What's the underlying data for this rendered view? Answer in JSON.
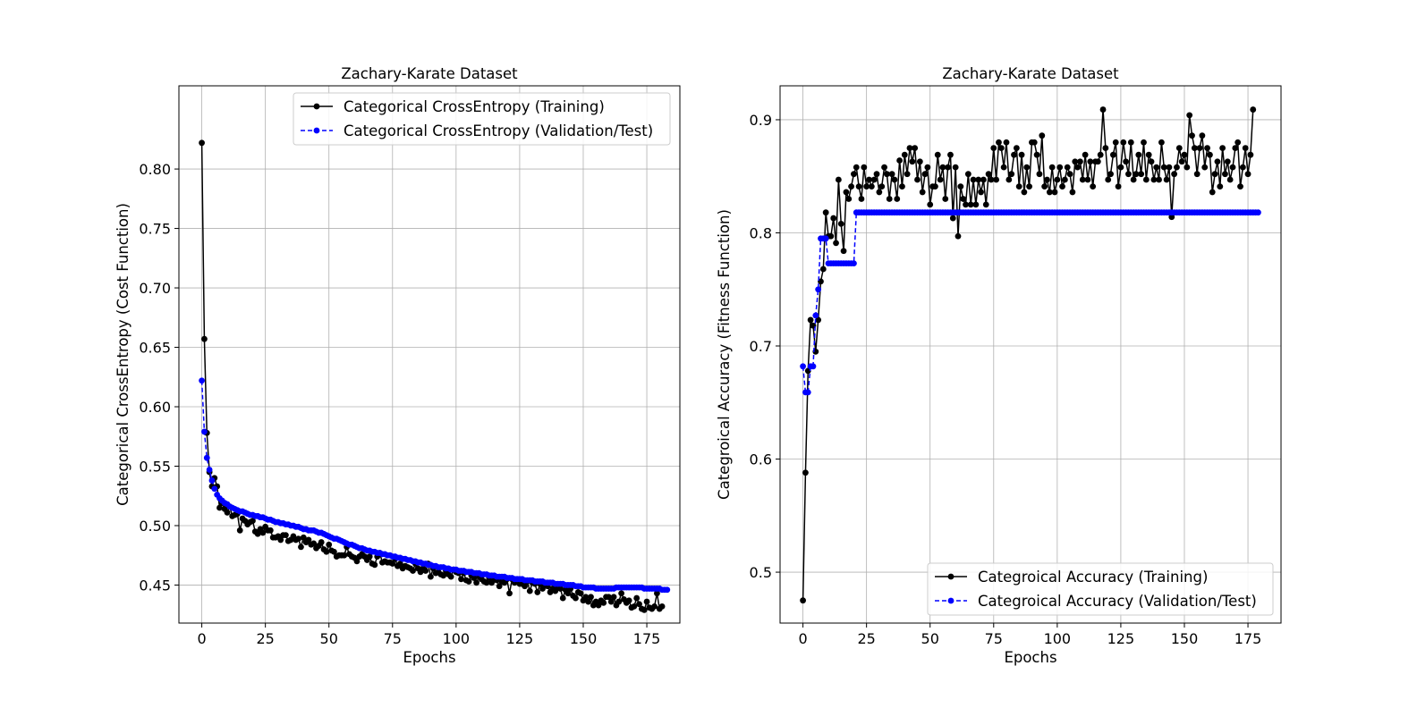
{
  "chart_data": [
    {
      "type": "line",
      "title": "Zachary-Karate Dataset",
      "xlabel": "Epochs",
      "ylabel": "Categorical CrossEntropy (Cost Function)",
      "xlim": [
        -9,
        188
      ],
      "ylim": [
        0.418,
        0.87
      ],
      "xticks": [
        "0",
        "25",
        "50",
        "75",
        "100",
        "125",
        "150",
        "175"
      ],
      "yticks": [
        "0.45",
        "0.50",
        "0.55",
        "0.60",
        "0.65",
        "0.70",
        "0.75",
        "0.80"
      ],
      "grid": true,
      "legend_position": "top-right",
      "series": [
        {
          "name": "Categorical CrossEntropy (Training)",
          "color": "#000000",
          "linestyle": "solid",
          "x_start": 0,
          "values": [
            0.822,
            0.657,
            0.578,
            0.545,
            0.533,
            0.54,
            0.533,
            0.515,
            0.519,
            0.514,
            0.511,
            0.516,
            0.508,
            0.509,
            0.51,
            0.496,
            0.506,
            0.504,
            0.501,
            0.503,
            0.504,
            0.495,
            0.493,
            0.497,
            0.494,
            0.499,
            0.496,
            0.496,
            0.49,
            0.49,
            0.491,
            0.488,
            0.492,
            0.492,
            0.487,
            0.488,
            0.491,
            0.488,
            0.489,
            0.482,
            0.49,
            0.486,
            0.488,
            0.484,
            0.485,
            0.481,
            0.483,
            0.486,
            0.48,
            0.478,
            0.484,
            0.479,
            0.478,
            0.474,
            0.475,
            0.475,
            0.475,
            0.482,
            0.476,
            0.474,
            0.473,
            0.47,
            0.474,
            0.476,
            0.474,
            0.471,
            0.474,
            0.468,
            0.467,
            0.474,
            0.477,
            0.469,
            0.47,
            0.469,
            0.469,
            0.468,
            0.472,
            0.466,
            0.468,
            0.464,
            0.466,
            0.465,
            0.464,
            0.462,
            0.468,
            0.464,
            0.461,
            0.464,
            0.462,
            0.468,
            0.457,
            0.464,
            0.46,
            0.461,
            0.459,
            0.458,
            0.462,
            0.459,
            0.457,
            0.463,
            0.461,
            0.46,
            0.455,
            0.46,
            0.454,
            0.453,
            0.458,
            0.456,
            0.452,
            0.457,
            0.455,
            0.453,
            0.452,
            0.456,
            0.452,
            0.455,
            0.454,
            0.449,
            0.453,
            0.452,
            0.455,
            0.443,
            0.455,
            0.452,
            0.455,
            0.451,
            0.451,
            0.449,
            0.453,
            0.445,
            0.452,
            0.451,
            0.444,
            0.451,
            0.447,
            0.45,
            0.449,
            0.444,
            0.447,
            0.445,
            0.448,
            0.447,
            0.439,
            0.446,
            0.443,
            0.447,
            0.441,
            0.439,
            0.444,
            0.443,
            0.437,
            0.44,
            0.436,
            0.44,
            0.433,
            0.436,
            0.433,
            0.437,
            0.435,
            0.44,
            0.44,
            0.436,
            0.44,
            0.433,
            0.436,
            0.443,
            0.438,
            0.435,
            0.437,
            0.431,
            0.432,
            0.439,
            0.434,
            0.43,
            0.429,
            0.436,
            0.431,
            0.43,
            0.432,
            0.443,
            0.43,
            0.432
          ]
        },
        {
          "name": "Categorical CrossEntropy (Validation/Test)",
          "color": "#0000ff",
          "linestyle": "dashed",
          "x_start": 0,
          "values": [
            0.622,
            0.579,
            0.557,
            0.547,
            0.538,
            0.531,
            0.526,
            0.523,
            0.521,
            0.519,
            0.518,
            0.516,
            0.515,
            0.514,
            0.513,
            0.512,
            0.512,
            0.511,
            0.51,
            0.509,
            0.509,
            0.508,
            0.508,
            0.507,
            0.507,
            0.506,
            0.505,
            0.505,
            0.504,
            0.503,
            0.503,
            0.502,
            0.502,
            0.501,
            0.501,
            0.5,
            0.5,
            0.499,
            0.499,
            0.498,
            0.497,
            0.497,
            0.496,
            0.496,
            0.496,
            0.495,
            0.494,
            0.494,
            0.493,
            0.492,
            0.491,
            0.49,
            0.489,
            0.489,
            0.488,
            0.487,
            0.486,
            0.485,
            0.484,
            0.484,
            0.483,
            0.482,
            0.481,
            0.481,
            0.48,
            0.479,
            0.479,
            0.478,
            0.478,
            0.477,
            0.477,
            0.476,
            0.476,
            0.475,
            0.475,
            0.474,
            0.474,
            0.473,
            0.473,
            0.472,
            0.472,
            0.471,
            0.471,
            0.47,
            0.47,
            0.469,
            0.469,
            0.468,
            0.468,
            0.467,
            0.467,
            0.466,
            0.466,
            0.465,
            0.465,
            0.465,
            0.464,
            0.464,
            0.463,
            0.463,
            0.463,
            0.462,
            0.462,
            0.462,
            0.461,
            0.461,
            0.461,
            0.46,
            0.46,
            0.46,
            0.459,
            0.459,
            0.459,
            0.458,
            0.458,
            0.458,
            0.457,
            0.457,
            0.457,
            0.457,
            0.456,
            0.456,
            0.456,
            0.455,
            0.455,
            0.455,
            0.455,
            0.454,
            0.454,
            0.454,
            0.454,
            0.453,
            0.453,
            0.453,
            0.453,
            0.452,
            0.452,
            0.452,
            0.452,
            0.451,
            0.451,
            0.451,
            0.451,
            0.45,
            0.45,
            0.45,
            0.45,
            0.449,
            0.449,
            0.449,
            0.448,
            0.448,
            0.448,
            0.448,
            0.448,
            0.447,
            0.447,
            0.447,
            0.447,
            0.447,
            0.447,
            0.447,
            0.447,
            0.448,
            0.448,
            0.448,
            0.448,
            0.448,
            0.448,
            0.448,
            0.448,
            0.448,
            0.448,
            0.448,
            0.447,
            0.447,
            0.447,
            0.447,
            0.447,
            0.447,
            0.447,
            0.446,
            0.446,
            0.446
          ]
        }
      ]
    },
    {
      "type": "line",
      "title": "Zachary-Karate Dataset",
      "xlabel": "Epochs",
      "ylabel": "Categroical Accuracy (Fitness Function)",
      "xlim": [
        -9,
        188
      ],
      "ylim": [
        0.455,
        0.93
      ],
      "xticks": [
        "0",
        "25",
        "50",
        "75",
        "100",
        "125",
        "150",
        "175"
      ],
      "yticks": [
        "0.5",
        "0.6",
        "0.7",
        "0.8",
        "0.9"
      ],
      "grid": true,
      "legend_position": "lower-right",
      "series": [
        {
          "name": "Categroical Accuracy (Training)",
          "color": "#000000",
          "linestyle": "solid",
          "x_start": 0,
          "values": [
            0.475,
            0.588,
            0.678,
            0.723,
            0.718,
            0.695,
            0.723,
            0.757,
            0.768,
            0.818,
            0.797,
            0.797,
            0.813,
            0.791,
            0.847,
            0.808,
            0.784,
            0.836,
            0.83,
            0.841,
            0.852,
            0.858,
            0.841,
            0.83,
            0.858,
            0.841,
            0.847,
            0.841,
            0.847,
            0.852,
            0.836,
            0.841,
            0.858,
            0.852,
            0.83,
            0.852,
            0.847,
            0.83,
            0.864,
            0.841,
            0.869,
            0.852,
            0.875,
            0.863,
            0.875,
            0.847,
            0.863,
            0.836,
            0.852,
            0.858,
            0.825,
            0.841,
            0.841,
            0.869,
            0.847,
            0.858,
            0.83,
            0.858,
            0.869,
            0.813,
            0.858,
            0.797,
            0.841,
            0.83,
            0.825,
            0.852,
            0.825,
            0.847,
            0.825,
            0.847,
            0.836,
            0.847,
            0.825,
            0.852,
            0.847,
            0.875,
            0.847,
            0.88,
            0.875,
            0.858,
            0.88,
            0.847,
            0.852,
            0.869,
            0.875,
            0.841,
            0.869,
            0.836,
            0.858,
            0.841,
            0.88,
            0.88,
            0.869,
            0.852,
            0.886,
            0.841,
            0.847,
            0.836,
            0.858,
            0.836,
            0.847,
            0.858,
            0.841,
            0.847,
            0.858,
            0.852,
            0.836,
            0.863,
            0.858,
            0.863,
            0.847,
            0.869,
            0.847,
            0.863,
            0.841,
            0.863,
            0.863,
            0.869,
            0.909,
            0.875,
            0.847,
            0.852,
            0.869,
            0.88,
            0.841,
            0.858,
            0.88,
            0.863,
            0.852,
            0.88,
            0.847,
            0.852,
            0.869,
            0.852,
            0.88,
            0.847,
            0.869,
            0.863,
            0.847,
            0.858,
            0.847,
            0.88,
            0.858,
            0.847,
            0.858,
            0.814,
            0.852,
            0.858,
            0.875,
            0.863,
            0.869,
            0.858,
            0.904,
            0.886,
            0.875,
            0.852,
            0.875,
            0.886,
            0.858,
            0.875,
            0.869,
            0.836,
            0.852,
            0.863,
            0.841,
            0.875,
            0.852,
            0.863,
            0.847,
            0.858,
            0.875,
            0.88,
            0.841,
            0.858,
            0.875,
            0.852,
            0.869,
            0.909
          ]
        },
        {
          "name": "Categroical Accuracy (Validation/Test)",
          "color": "#0000ff",
          "linestyle": "dashed",
          "x_start": 0,
          "values": [
            0.682,
            0.659,
            0.659,
            0.682,
            0.682,
            0.727,
            0.75,
            0.795,
            0.795,
            0.795,
            0.773,
            0.773,
            0.773,
            0.773,
            0.773,
            0.773,
            0.773,
            0.773,
            0.773,
            0.773,
            0.773,
            0.818,
            0.818,
            0.818,
            0.818,
            0.818,
            0.818,
            0.818,
            0.818,
            0.818,
            0.818,
            0.818,
            0.818,
            0.818,
            0.818,
            0.818,
            0.818,
            0.818,
            0.818,
            0.818,
            0.818,
            0.818,
            0.818,
            0.818,
            0.818,
            0.818,
            0.818,
            0.818,
            0.818,
            0.818,
            0.818,
            0.818,
            0.818,
            0.818,
            0.818,
            0.818,
            0.818,
            0.818,
            0.818,
            0.818,
            0.818,
            0.818,
            0.818,
            0.818,
            0.818,
            0.818,
            0.818,
            0.818,
            0.818,
            0.818,
            0.818,
            0.818,
            0.818,
            0.818,
            0.818,
            0.818,
            0.818,
            0.818,
            0.818,
            0.818,
            0.818,
            0.818,
            0.818,
            0.818,
            0.818,
            0.818,
            0.818,
            0.818,
            0.818,
            0.818,
            0.818,
            0.818,
            0.818,
            0.818,
            0.818,
            0.818,
            0.818,
            0.818,
            0.818,
            0.818,
            0.818,
            0.818,
            0.818,
            0.818,
            0.818,
            0.818,
            0.818,
            0.818,
            0.818,
            0.818,
            0.818,
            0.818,
            0.818,
            0.818,
            0.818,
            0.818,
            0.818,
            0.818,
            0.818,
            0.818,
            0.818,
            0.818,
            0.818,
            0.818,
            0.818,
            0.818,
            0.818,
            0.818,
            0.818,
            0.818,
            0.818,
            0.818,
            0.818,
            0.818,
            0.818,
            0.818,
            0.818,
            0.818,
            0.818,
            0.818,
            0.818,
            0.818,
            0.818,
            0.818,
            0.818,
            0.818,
            0.818,
            0.818,
            0.818,
            0.818,
            0.818,
            0.818,
            0.818,
            0.818,
            0.818,
            0.818,
            0.818,
            0.818,
            0.818,
            0.818,
            0.818,
            0.818,
            0.818,
            0.818,
            0.818,
            0.818,
            0.818,
            0.818,
            0.818,
            0.818,
            0.818,
            0.818,
            0.818,
            0.818,
            0.818,
            0.818,
            0.818,
            0.818,
            0.818,
            0.818
          ]
        }
      ]
    }
  ]
}
